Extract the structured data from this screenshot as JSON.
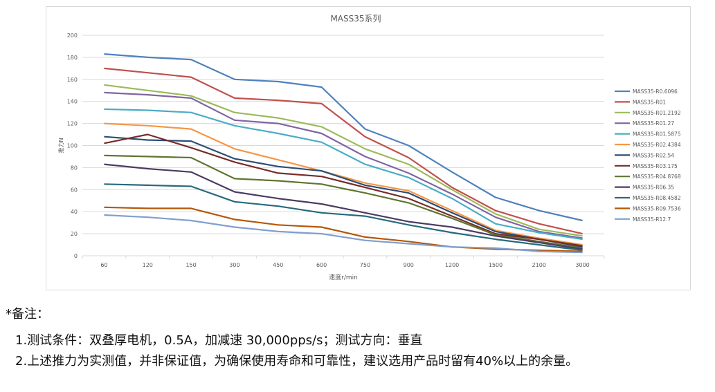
{
  "chart_data": {
    "type": "line",
    "title": "MASS35系列",
    "xlabel": "速度r/min",
    "ylabel": "推力N",
    "categories": [
      "60",
      "120",
      "150",
      "300",
      "450",
      "600",
      "750",
      "900",
      "1200",
      "1500",
      "2100",
      "3000"
    ],
    "ylim": [
      0,
      200
    ],
    "yticks": [
      0,
      20,
      40,
      60,
      80,
      100,
      120,
      140,
      160,
      180,
      200
    ],
    "grid": true,
    "legend_position": "right",
    "series": [
      {
        "name": "MASS35-R0.6096",
        "color": "#4f81bd",
        "values": [
          183,
          180,
          178,
          160,
          158,
          153,
          115,
          100,
          76,
          53,
          41,
          32
        ]
      },
      {
        "name": "MASS35-R01",
        "color": "#c0504d",
        "values": [
          170,
          166,
          162,
          143,
          141,
          138,
          108,
          89,
          62,
          41,
          29,
          20
        ]
      },
      {
        "name": "MASS35-R01.2192",
        "color": "#9bbb59",
        "values": [
          155,
          150,
          145,
          130,
          125,
          117,
          97,
          83,
          60,
          38,
          24,
          18
        ]
      },
      {
        "name": "MASS35-R01.27",
        "color": "#8064a2",
        "values": [
          148,
          146,
          143,
          123,
          120,
          111,
          90,
          75,
          56,
          35,
          22,
          16
        ]
      },
      {
        "name": "MASS35-R01.5875",
        "color": "#4bacc6",
        "values": [
          133,
          132,
          130,
          118,
          111,
          103,
          83,
          71,
          52,
          29,
          21,
          15
        ]
      },
      {
        "name": "MASS35-R02.4384",
        "color": "#f79646",
        "values": [
          120,
          118,
          115,
          97,
          87,
          77,
          66,
          59,
          41,
          23,
          16,
          10
        ]
      },
      {
        "name": "MASS35-R02.54",
        "color": "#2c4d75",
        "values": [
          108,
          105,
          104,
          88,
          81,
          77,
          64,
          57,
          39,
          22,
          15,
          8
        ]
      },
      {
        "name": "MASS35-R03.175",
        "color": "#772c2a",
        "values": [
          102,
          110,
          98,
          85,
          75,
          72,
          62,
          52,
          36,
          20,
          15,
          9
        ]
      },
      {
        "name": "MASS35-R04.8768",
        "color": "#5f7530",
        "values": [
          91,
          90,
          89,
          70,
          68,
          65,
          57,
          48,
          34,
          19,
          13,
          7
        ]
      },
      {
        "name": "MASS35-R06.35",
        "color": "#4d3b62",
        "values": [
          83,
          79,
          76,
          58,
          52,
          47,
          39,
          31,
          26,
          18,
          12,
          6
        ]
      },
      {
        "name": "MASS35-R08.4582",
        "color": "#276a7c",
        "values": [
          65,
          64,
          63,
          49,
          45,
          39,
          36,
          28,
          21,
          15,
          10,
          5
        ]
      },
      {
        "name": "MASS35-R09.7536",
        "color": "#b65708",
        "values": [
          44,
          43,
          43,
          33,
          28,
          26,
          17,
          13,
          8,
          6,
          5,
          4
        ]
      },
      {
        "name": "MASS35-R12.7",
        "color": "#7f9fcf",
        "values": [
          37,
          35,
          32,
          26,
          22,
          20,
          14,
          11,
          8,
          7,
          4,
          3
        ]
      }
    ]
  },
  "notes": {
    "title": "*备注：",
    "line1": "1.测试条件：双叠厚电机，0.5A，加减速 30,000pps/s；测试方向：垂直",
    "line2": "2.上述推力为实测值，并非保证值，为确保使用寿命和可靠性，建议选用产品时留有40%以上的余量。"
  },
  "colors": {
    "gridline": "#d9d9d9",
    "axis_text": "#595959",
    "frame": "#d9d9d9"
  }
}
